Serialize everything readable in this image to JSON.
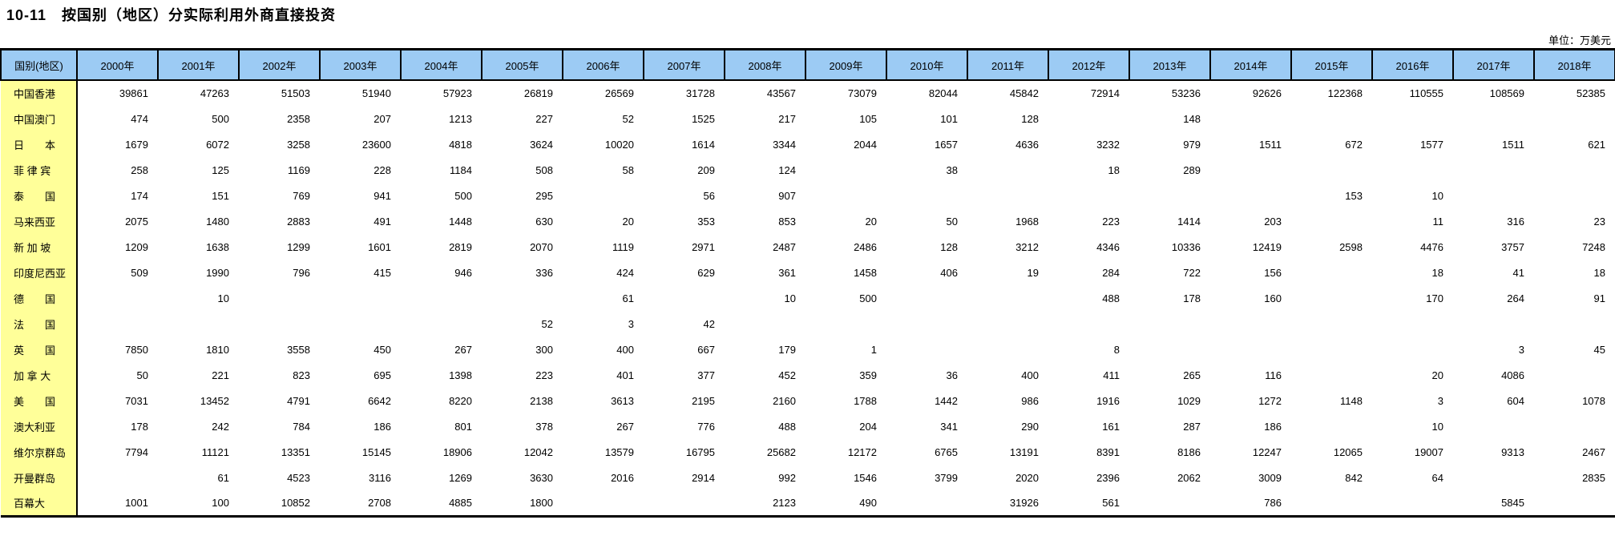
{
  "page": {
    "title": "10-11　按国别（地区）分实际利用外商直接投资",
    "unit_label": "单位：万美元"
  },
  "colors": {
    "header_bg": "#9ccbf4",
    "label_col_bg": "#ffff99",
    "border": "#000000"
  },
  "table": {
    "corner_header": "国别(地区)",
    "year_headers": [
      "2000年",
      "2001年",
      "2002年",
      "2003年",
      "2004年",
      "2005年",
      "2006年",
      "2007年",
      "2008年",
      "2009年",
      "2010年",
      "2011年",
      "2012年",
      "2013年",
      "2014年",
      "2015年",
      "2016年",
      "2017年",
      "2018年"
    ],
    "rows": [
      {
        "label": "中国香港",
        "values": [
          "39861",
          "47263",
          "51503",
          "51940",
          "57923",
          "26819",
          "26569",
          "31728",
          "43567",
          "73079",
          "82044",
          "45842",
          "72914",
          "53236",
          "92626",
          "122368",
          "110555",
          "108569",
          "52385"
        ]
      },
      {
        "label": "中国澳门",
        "values": [
          "474",
          "500",
          "2358",
          "207",
          "1213",
          "227",
          "52",
          "1525",
          "217",
          "105",
          "101",
          "128",
          "",
          "148",
          "",
          "",
          "",
          "",
          ""
        ]
      },
      {
        "label": "日　　本",
        "values": [
          "1679",
          "6072",
          "3258",
          "23600",
          "4818",
          "3624",
          "10020",
          "1614",
          "3344",
          "2044",
          "1657",
          "4636",
          "3232",
          "979",
          "1511",
          "672",
          "1577",
          "1511",
          "621"
        ]
      },
      {
        "label": "菲 律 宾",
        "values": [
          "258",
          "125",
          "1169",
          "228",
          "1184",
          "508",
          "58",
          "209",
          "124",
          "",
          "38",
          "",
          "18",
          "289",
          "",
          "",
          "",
          "",
          ""
        ]
      },
      {
        "label": "泰　　国",
        "values": [
          "174",
          "151",
          "769",
          "941",
          "500",
          "295",
          "",
          "56",
          "907",
          "",
          "",
          "",
          "",
          "",
          "",
          "153",
          "10",
          "",
          ""
        ]
      },
      {
        "label": "马来西亚",
        "values": [
          "2075",
          "1480",
          "2883",
          "491",
          "1448",
          "630",
          "20",
          "353",
          "853",
          "20",
          "50",
          "1968",
          "223",
          "1414",
          "203",
          "",
          "11",
          "316",
          "23"
        ]
      },
      {
        "label": "新 加 坡",
        "values": [
          "1209",
          "1638",
          "1299",
          "1601",
          "2819",
          "2070",
          "1119",
          "2971",
          "2487",
          "2486",
          "128",
          "3212",
          "4346",
          "10336",
          "12419",
          "2598",
          "4476",
          "3757",
          "7248"
        ]
      },
      {
        "label": "印度尼西亚",
        "values": [
          "509",
          "1990",
          "796",
          "415",
          "946",
          "336",
          "424",
          "629",
          "361",
          "1458",
          "406",
          "19",
          "284",
          "722",
          "156",
          "",
          "18",
          "41",
          "18"
        ]
      },
      {
        "label": "德　　国",
        "values": [
          "",
          "10",
          "",
          "",
          "",
          "",
          "61",
          "",
          "10",
          "500",
          "",
          "",
          "488",
          "178",
          "160",
          "",
          "170",
          "264",
          "91"
        ]
      },
      {
        "label": "法　　国",
        "values": [
          "",
          "",
          "",
          "",
          "",
          "52",
          "3",
          "42",
          "",
          "",
          "",
          "",
          "",
          "",
          "",
          "",
          "",
          "",
          ""
        ]
      },
      {
        "label": "英　　国",
        "values": [
          "7850",
          "1810",
          "3558",
          "450",
          "267",
          "300",
          "400",
          "667",
          "179",
          "1",
          "",
          "",
          "8",
          "",
          "",
          "",
          "",
          "3",
          "45"
        ]
      },
      {
        "label": "加 拿 大",
        "values": [
          "50",
          "221",
          "823",
          "695",
          "1398",
          "223",
          "401",
          "377",
          "452",
          "359",
          "36",
          "400",
          "411",
          "265",
          "116",
          "",
          "20",
          "4086",
          ""
        ]
      },
      {
        "label": "美　　国",
        "values": [
          "7031",
          "13452",
          "4791",
          "6642",
          "8220",
          "2138",
          "3613",
          "2195",
          "2160",
          "1788",
          "1442",
          "986",
          "1916",
          "1029",
          "1272",
          "1148",
          "3",
          "604",
          "1078"
        ]
      },
      {
        "label": "澳大利亚",
        "values": [
          "178",
          "242",
          "784",
          "186",
          "801",
          "378",
          "267",
          "776",
          "488",
          "204",
          "341",
          "290",
          "161",
          "287",
          "186",
          "",
          "10",
          "",
          ""
        ]
      },
      {
        "label": "维尔京群岛",
        "values": [
          "7794",
          "11121",
          "13351",
          "15145",
          "18906",
          "12042",
          "13579",
          "16795",
          "25682",
          "12172",
          "6765",
          "13191",
          "8391",
          "8186",
          "12247",
          "12065",
          "19007",
          "9313",
          "2467"
        ]
      },
      {
        "label": "开曼群岛",
        "values": [
          "",
          "61",
          "4523",
          "3116",
          "1269",
          "3630",
          "2016",
          "2914",
          "992",
          "1546",
          "3799",
          "2020",
          "2396",
          "2062",
          "3009",
          "842",
          "64",
          "",
          "2835"
        ]
      },
      {
        "label": "百幕大",
        "values": [
          "1001",
          "100",
          "10852",
          "2708",
          "4885",
          "1800",
          "",
          "",
          "2123",
          "490",
          "",
          "31926",
          "561",
          "",
          "786",
          "",
          "",
          "5845",
          ""
        ]
      }
    ]
  }
}
